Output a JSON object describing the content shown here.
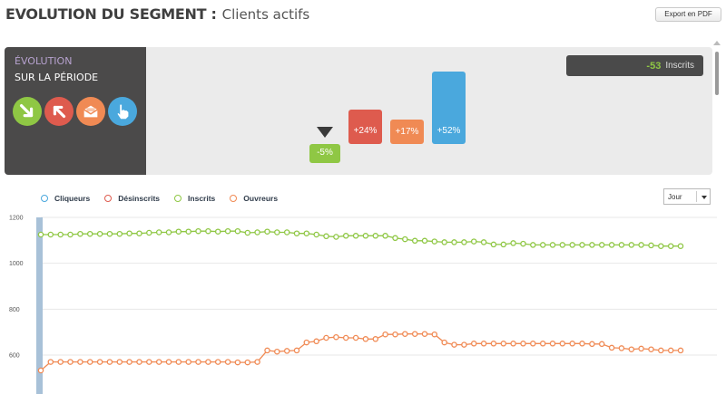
{
  "header": {
    "title": "EVOLUTION DU SEGMENT :",
    "subtitle": "Clients actifs",
    "export_label": "Export en PDF"
  },
  "evolution": {
    "title": "ÉVOLUTION",
    "subtitle": "SUR LA PÉRIODE",
    "buttons": [
      {
        "name": "inscrits-icon",
        "color": "#8fc744"
      },
      {
        "name": "desinscrits-icon",
        "color": "#de5b4e"
      },
      {
        "name": "ouvreurs-icon",
        "color": "#f08a54"
      },
      {
        "name": "cliqueurs-icon",
        "color": "#4aa8dd"
      }
    ],
    "bars": [
      {
        "label": "-5%",
        "color": "#8fc744"
      },
      {
        "label": "+24%",
        "color": "#de5b4e"
      },
      {
        "label": "+17%",
        "color": "#f08a54"
      },
      {
        "label": "+52%",
        "color": "#4aa8dd"
      }
    ],
    "summary": {
      "value": "-53",
      "unit": "Inscrits"
    }
  },
  "legend": [
    {
      "label": "Cliqueurs",
      "color": "#4aa8dd"
    },
    {
      "label": "Désinscrits",
      "color": "#de5b4e"
    },
    {
      "label": "Inscrits",
      "color": "#8fc744"
    },
    {
      "label": "Ouvreurs",
      "color": "#f08a54"
    }
  ],
  "period": {
    "selected": "Jour"
  },
  "chart_data": {
    "type": "line",
    "y_ticks": [
      600,
      800,
      1000,
      1200
    ],
    "ylim": [
      470,
      1200
    ],
    "grid": true,
    "series": [
      {
        "name": "Inscrits",
        "color": "#8fc744",
        "values": [
          1125,
          1125,
          1125,
          1125,
          1128,
          1128,
          1128,
          1128,
          1128,
          1130,
          1130,
          1133,
          1135,
          1135,
          1138,
          1138,
          1140,
          1140,
          1138,
          1140,
          1140,
          1133,
          1135,
          1138,
          1135,
          1135,
          1130,
          1130,
          1125,
          1118,
          1115,
          1120,
          1120,
          1120,
          1120,
          1120,
          1110,
          1105,
          1098,
          1098,
          1095,
          1092,
          1092,
          1092,
          1095,
          1092,
          1082,
          1082,
          1088,
          1085,
          1080,
          1080,
          1080,
          1080,
          1080,
          1080,
          1080,
          1080,
          1080,
          1080,
          1080,
          1080,
          1078,
          1075,
          1075,
          1075
        ]
      },
      {
        "name": "Ouvreurs",
        "color": "#f08a54",
        "values": [
          533,
          570,
          570,
          570,
          570,
          570,
          570,
          570,
          570,
          570,
          570,
          570,
          570,
          570,
          570,
          570,
          570,
          570,
          570,
          570,
          568,
          568,
          570,
          620,
          615,
          618,
          620,
          655,
          660,
          675,
          678,
          675,
          675,
          670,
          670,
          690,
          690,
          692,
          692,
          692,
          690,
          655,
          645,
          645,
          650,
          650,
          650,
          650,
          650,
          650,
          650,
          650,
          650,
          650,
          650,
          650,
          648,
          648,
          632,
          630,
          625,
          628,
          625,
          620,
          620,
          620
        ]
      }
    ]
  }
}
